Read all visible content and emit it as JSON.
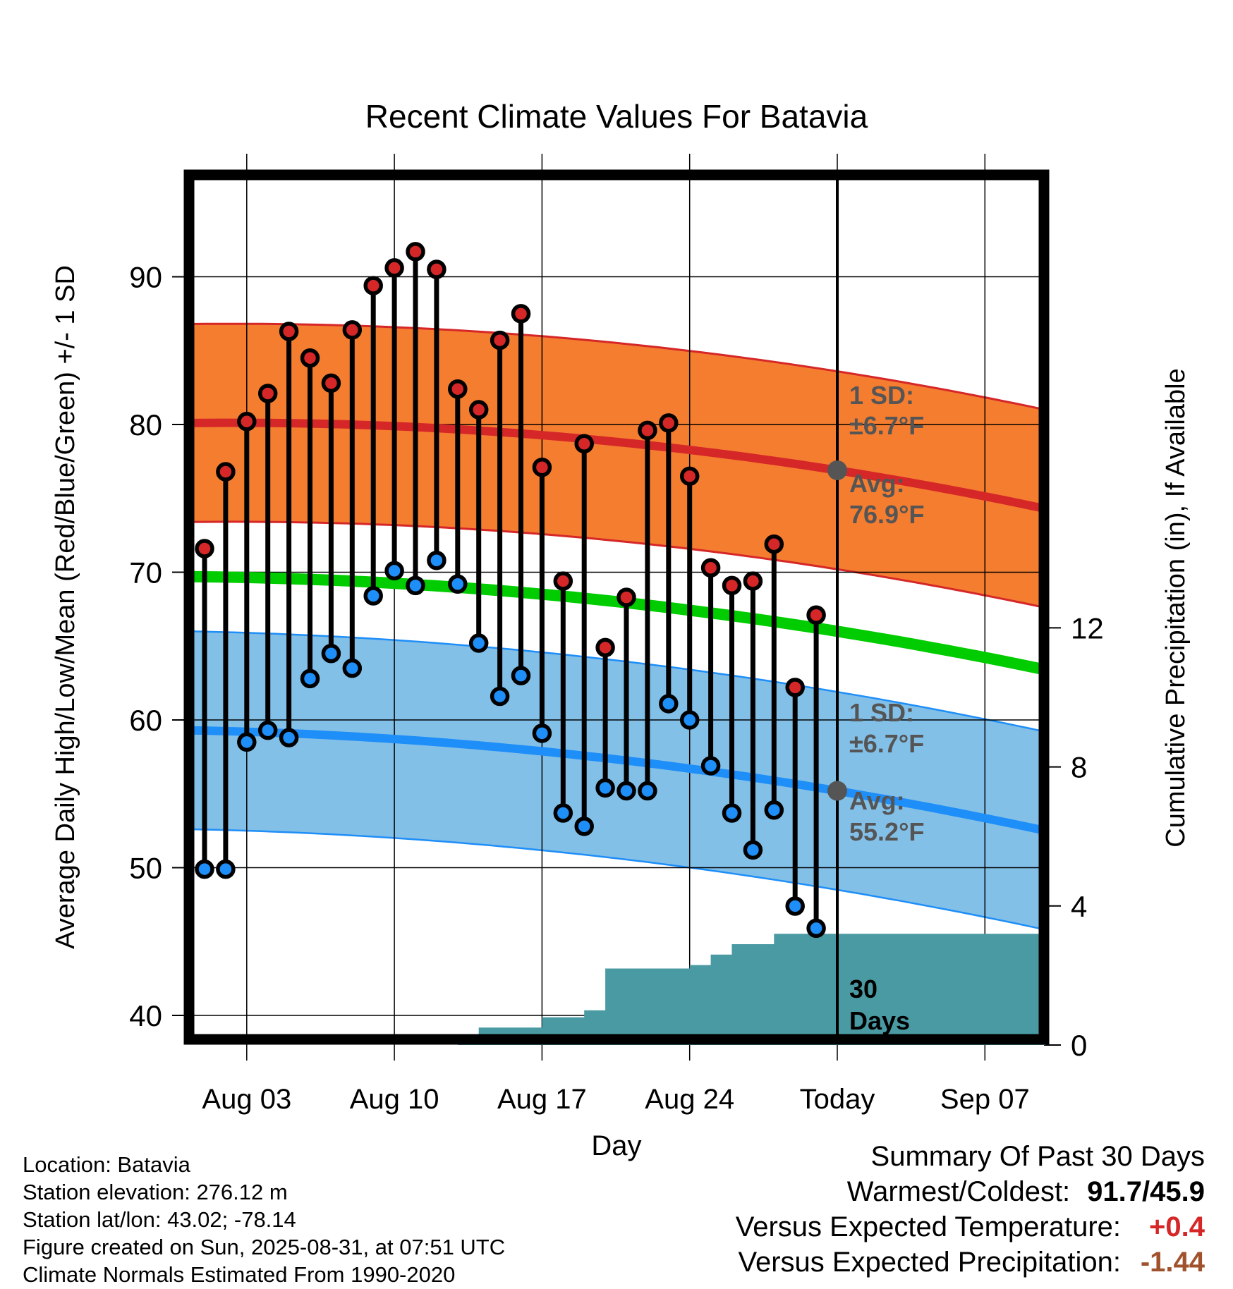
{
  "chart_data": {
    "type": "line",
    "title": "Recent Climate Values For Batavia",
    "xlabel": "Day",
    "ylabel": "Average Daily High/Low/Mean (Red/Blue/Green) +/- 1 SD",
    "y2label": "Cumulative Precipitation (in), If Available",
    "x_tick_labels": [
      "Aug 03",
      "Aug 10",
      "Aug 17",
      "Aug 24",
      "Today",
      "Sep 07"
    ],
    "y_ticks": [
      40,
      50,
      60,
      70,
      80,
      90
    ],
    "y2_ticks": [
      0,
      4,
      8,
      12
    ],
    "ylim": [
      38.4,
      96.8
    ],
    "y2lim": [
      0,
      23.6
    ],
    "grid": true,
    "daily_highs": [
      71.6,
      76.8,
      80.2,
      82.1,
      86.3,
      84.5,
      82.8,
      86.4,
      89.4,
      90.6,
      91.7,
      90.5,
      82.4,
      81.0,
      85.7,
      87.5,
      77.1,
      69.4,
      78.7,
      64.9,
      68.3,
      79.6,
      80.1,
      76.5,
      70.3,
      69.1,
      69.4,
      71.9,
      62.2,
      67.1
    ],
    "daily_lows": [
      49.9,
      49.9,
      58.5,
      59.3,
      58.8,
      62.8,
      64.5,
      63.5,
      68.4,
      70.1,
      69.1,
      70.8,
      69.2,
      65.2,
      61.6,
      63.0,
      59.1,
      53.7,
      52.8,
      55.4,
      55.2,
      55.2,
      61.1,
      60.0,
      56.9,
      53.7,
      51.2,
      53.9,
      47.4,
      45.9
    ],
    "normal_high": {
      "start": 80.1,
      "today": 76.9,
      "end": 74.3
    },
    "normal_low": {
      "start": 59.3,
      "today": 55.2,
      "end": 52.5
    },
    "normal_mean": {
      "start": 69.7,
      "today": 66.0,
      "end": 63.4
    },
    "sd": 6.7,
    "cumulative_precipitation": [
      0,
      0,
      0,
      0,
      0,
      0,
      0,
      0,
      0,
      0,
      0,
      0,
      0.05,
      0.5,
      0.5,
      0.5,
      0.8,
      0.8,
      1.0,
      2.2,
      2.2,
      2.2,
      2.2,
      2.3,
      2.6,
      2.9,
      2.9,
      3.2,
      3.2,
      3.2,
      3.2
    ],
    "colors": {
      "high_band": "#f47d30",
      "high_line": "#d62728",
      "low_band": "#83c0e8",
      "low_line": "#1e8ef8",
      "mean_line": "#00cc00",
      "precip": "#4a9aa3",
      "high_dot": "#d62728",
      "low_dot": "#1e8ef8",
      "today_dot": "#555555",
      "annotation": "#555555"
    },
    "annotations": {
      "high_sd_label": "1 SD:",
      "high_sd_value": "±6.7°F",
      "high_avg_label": "Avg:",
      "high_avg_value": "76.9°F",
      "low_sd_label": "1 SD:",
      "low_sd_value": "±6.7°F",
      "low_avg_label": "Avg:",
      "low_avg_value": "55.2°F",
      "period_number": "30",
      "period_unit": "Days"
    }
  },
  "station": {
    "location": "Location: Batavia",
    "elevation": "Station elevation: 276.12 m",
    "latlon": "Station lat/lon: 43.02; -78.14",
    "created": "Figure created on Sun, 2025-08-31, at 07:51 UTC",
    "normals": "Climate Normals Estimated From 1990-2020"
  },
  "summary": {
    "title": "Summary Of Past 30 Days",
    "warmest_coldest_label": "Warmest/Coldest:",
    "warmest_coldest_value": "91.7/45.9",
    "temp_label": "Versus Expected Temperature:",
    "temp_value": "+0.4",
    "temp_color": "#d62728",
    "precip_label": "Versus Expected Precipitation:",
    "precip_value": "-1.44",
    "precip_color": "#a0522d"
  }
}
